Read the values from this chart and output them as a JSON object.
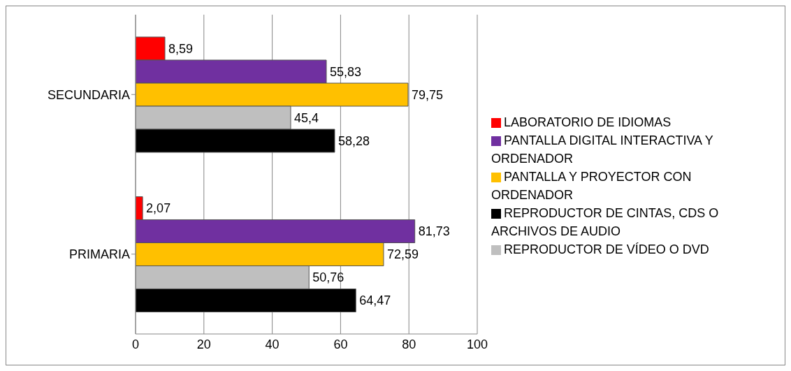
{
  "chart_data": {
    "type": "bar",
    "orientation": "horizontal",
    "categories": [
      "SECUNDARIA",
      "PRIMARIA"
    ],
    "series": [
      {
        "name": "LABORATORIO DE IDIOMAS",
        "color": "#ff0000",
        "values": [
          8.59,
          2.07
        ],
        "value_labels": [
          "8,59",
          "2,07"
        ]
      },
      {
        "name": "PANTALLA DIGITAL INTERACTIVA Y ORDENADOR",
        "color": "#7030a0",
        "values": [
          55.83,
          81.73
        ],
        "value_labels": [
          "55,83",
          "81,73"
        ]
      },
      {
        "name": "PANTALLA Y PROYECTOR CON ORDENADOR",
        "color": "#ffc000",
        "values": [
          79.75,
          72.59
        ],
        "value_labels": [
          "79,75",
          "72,59"
        ]
      },
      {
        "name": "REPRODUCTOR DE VÍDEO O DVD",
        "color": "#bfbfbf",
        "values": [
          45.4,
          50.76
        ],
        "value_labels": [
          "45,4",
          "50,76"
        ]
      },
      {
        "name": "REPRODUCTOR DE CINTAS, CDS O ARCHIVOS DE AUDIO",
        "color": "#000000",
        "values": [
          58.28,
          64.47
        ],
        "value_labels": [
          "58,28",
          "64,47"
        ]
      }
    ],
    "xlim": [
      0,
      100
    ],
    "xticks": [
      0,
      20,
      40,
      60,
      80,
      100
    ],
    "grid": "x",
    "legend": "right"
  }
}
